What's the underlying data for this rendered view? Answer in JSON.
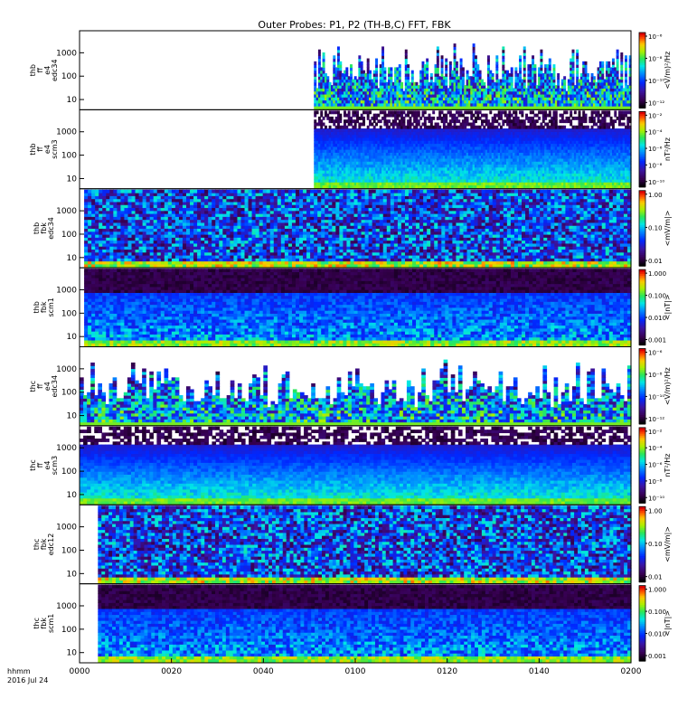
{
  "title": "Outer Probes: P1, P2 (TH-B,C) FFT, FBK",
  "time_axis": {
    "tick_labels": [
      "0000",
      "0020",
      "0040",
      "0100",
      "0120",
      "0140",
      "0200"
    ],
    "axis_label_line1": "hhmm",
    "axis_label_line2": "2016 Jul 24"
  },
  "chart_data": [
    {
      "type": "heatmap",
      "panel": 1,
      "ylabel_lines": [
        "thb",
        "ff",
        "e4",
        "edc34"
      ],
      "y_scale": "log",
      "y_ticks": [
        "1000",
        "100",
        "10"
      ],
      "colorbar_label": "<V/m)²/Hz",
      "colorbar_ticks": [
        "10⁻⁶",
        "10⁻⁸",
        "10⁻¹⁰",
        "10⁻¹²"
      ],
      "data_start_hhmm": "0051",
      "style": "bursty"
    },
    {
      "type": "heatmap",
      "panel": 2,
      "ylabel_lines": [
        "thb",
        "ff",
        "e4",
        "scm3"
      ],
      "y_scale": "log",
      "y_ticks": [
        "1000",
        "100",
        "10"
      ],
      "colorbar_label": "nT²/Hz",
      "colorbar_ticks": [
        "10⁻²",
        "10⁻⁴",
        "10⁻⁶",
        "10⁻⁸",
        "10⁻¹⁰"
      ],
      "data_start_hhmm": "0051",
      "style": "banded"
    },
    {
      "type": "heatmap",
      "panel": 3,
      "ylabel_lines": [
        "thb",
        "fbk",
        "edc34"
      ],
      "y_scale": "log",
      "y_ticks": [
        "1000",
        "100",
        "10"
      ],
      "colorbar_label": "<mV/m|>",
      "colorbar_ticks": [
        "1.00",
        "0.10",
        "0.01"
      ],
      "data_start_hhmm": "0001",
      "style": "fbk"
    },
    {
      "type": "heatmap",
      "panel": 4,
      "ylabel_lines": [
        "thb",
        "fbk",
        "scm1"
      ],
      "y_scale": "log",
      "y_ticks": [
        "1000",
        "100",
        "10"
      ],
      "colorbar_label": "<|nT|>",
      "colorbar_ticks": [
        "1.000",
        "0.100",
        "0.010",
        "0.001"
      ],
      "data_start_hhmm": "0001",
      "style": "fbk-scm"
    },
    {
      "type": "heatmap",
      "panel": 5,
      "ylabel_lines": [
        "thc",
        "ff",
        "e4",
        "edc34"
      ],
      "y_scale": "log",
      "y_ticks": [
        "1000",
        "100",
        "10"
      ],
      "colorbar_label": "<V/m)²/Hz",
      "colorbar_ticks": [
        "10⁻⁶",
        "10⁻⁸",
        "10⁻¹⁰",
        "10⁻¹²"
      ],
      "data_start_hhmm": "0000",
      "style": "bursty"
    },
    {
      "type": "heatmap",
      "panel": 6,
      "ylabel_lines": [
        "thc",
        "ff",
        "e4",
        "scm3"
      ],
      "y_scale": "log",
      "y_ticks": [
        "1000",
        "100",
        "10"
      ],
      "colorbar_label": "nT²/Hz",
      "colorbar_ticks": [
        "10⁻²",
        "10⁻⁴",
        "10⁻⁶",
        "10⁻⁸",
        "10⁻¹⁰"
      ],
      "data_start_hhmm": "0000",
      "style": "banded"
    },
    {
      "type": "heatmap",
      "panel": 7,
      "ylabel_lines": [
        "thc",
        "fbk",
        "edc12"
      ],
      "y_scale": "log",
      "y_ticks": [
        "1000",
        "100",
        "10"
      ],
      "colorbar_label": "<mV/m|>",
      "colorbar_ticks": [
        "1.00",
        "0.10",
        "0.01"
      ],
      "data_start_hhmm": "0004",
      "style": "fbk"
    },
    {
      "type": "heatmap",
      "panel": 8,
      "ylabel_lines": [
        "thc",
        "fbk",
        "scm1"
      ],
      "y_scale": "log",
      "y_ticks": [
        "1000",
        "100",
        "10"
      ],
      "colorbar_label": "<|nT|>",
      "colorbar_ticks": [
        "1.000",
        "0.100",
        "0.010",
        "0.001"
      ],
      "data_start_hhmm": "0004",
      "style": "fbk-scm"
    }
  ]
}
